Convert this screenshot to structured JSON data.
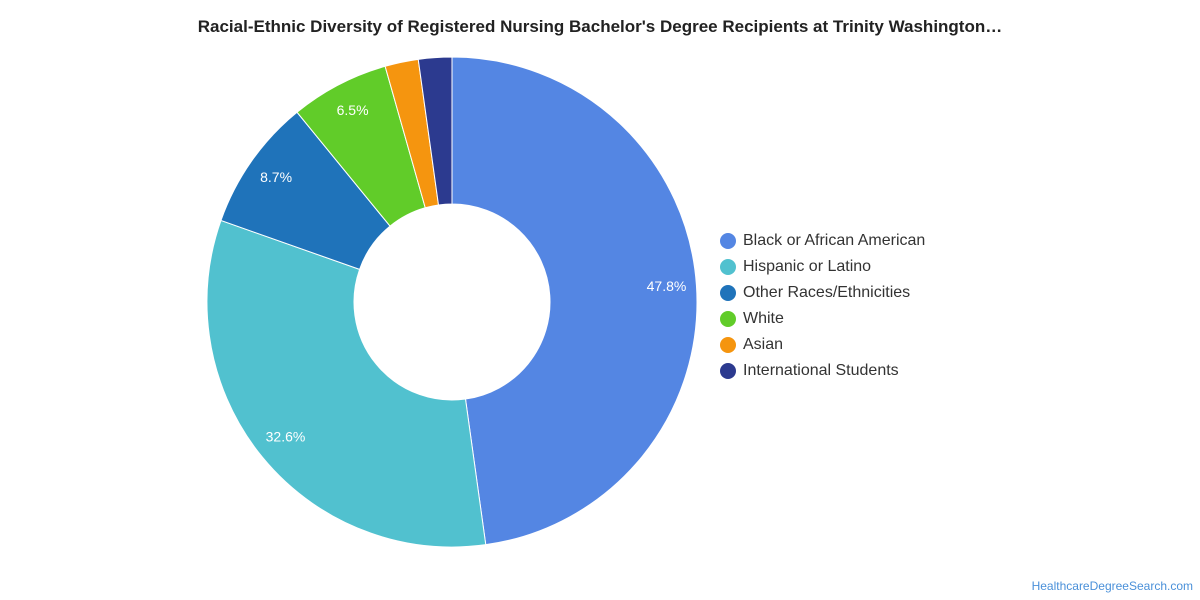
{
  "chart_data": {
    "type": "pie",
    "donut": true,
    "title": "Racial-Ethnic Diversity of Registered Nursing Bachelor's Degree Recipients at Trinity Washington…",
    "legend_position": "right",
    "series": [
      {
        "name": "Black or African American",
        "value": 47.8,
        "label": "47.8%",
        "color": "#5486e3"
      },
      {
        "name": "Hispanic or Latino",
        "value": 32.6,
        "label": "32.6%",
        "color": "#51c1cf"
      },
      {
        "name": "Other Races/Ethnicities",
        "value": 8.7,
        "label": "8.7%",
        "color": "#1f73ba"
      },
      {
        "name": "White",
        "value": 6.5,
        "label": "6.5%",
        "color": "#61cc29"
      },
      {
        "name": "Asian",
        "value": 2.2,
        "label": "",
        "color": "#f5950f"
      },
      {
        "name": "International Students",
        "value": 2.2,
        "label": "",
        "color": "#2c3a8f"
      }
    ]
  },
  "footer": {
    "source": "HealthcareDegreeSearch.com"
  }
}
